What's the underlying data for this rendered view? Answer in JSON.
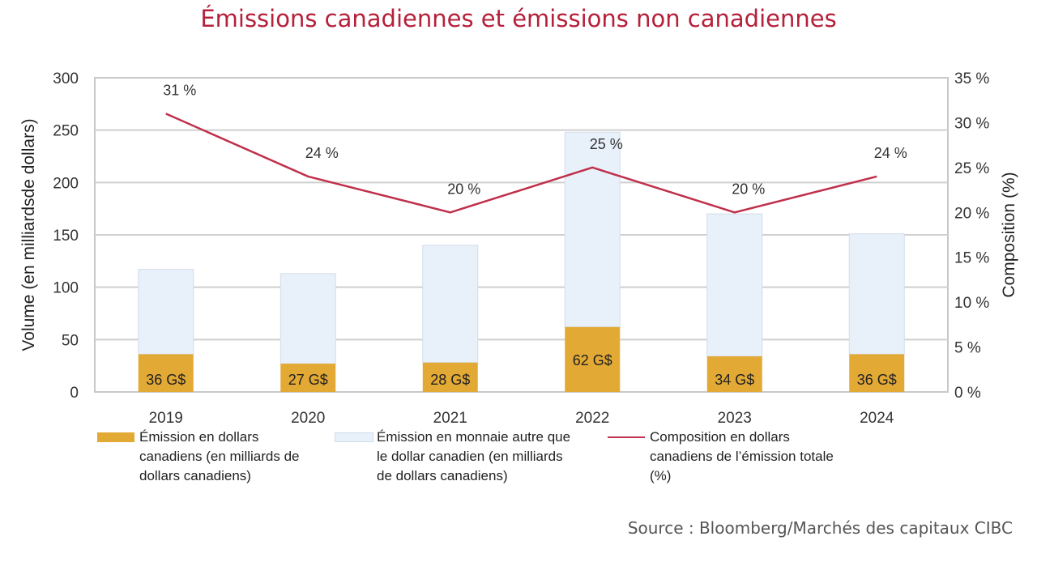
{
  "chart_data": {
    "type": "bar",
    "stacked": true,
    "title": "Émissions canadiennes et émissions non canadiennes",
    "categories": [
      "2019",
      "2020",
      "2021",
      "2022",
      "2023",
      "2024"
    ],
    "series": [
      {
        "name": "Émission en dollars canadiens (en milliards de dollars canadiens)",
        "type": "bar",
        "axis": "left",
        "color": "#e3a935",
        "values": [
          36,
          27,
          28,
          62,
          34,
          36
        ],
        "labels": [
          "36 G$",
          "27 G$",
          "28 G$",
          "62 G$",
          "34 G$",
          "36 G$"
        ]
      },
      {
        "name": "Émission en monnaie autre que le dollar canadien (en milliards de dollars canadiens)",
        "type": "bar",
        "axis": "left",
        "color": "#e8f0fa",
        "values": [
          81,
          86,
          112,
          186,
          136,
          115
        ]
      },
      {
        "name": "Composition en dollars canadiens de l’émission totale (%)",
        "type": "line",
        "axis": "right",
        "color": "#c0304a",
        "values": [
          31,
          24,
          20,
          25,
          20,
          24
        ],
        "labels": [
          "31 %",
          "24 %",
          "20 %",
          "25 %",
          "20 %",
          "24 %"
        ]
      }
    ],
    "ylabel": "Volume (en milliards de dollars)",
    "ylabel_display": "Volume (en milliardsde dollars)",
    "y2label": "Composition (%)",
    "ylim": [
      0,
      300
    ],
    "y2lim": [
      0,
      35
    ],
    "yticks": [
      "0",
      "50",
      "100",
      "150",
      "200",
      "250",
      "300"
    ],
    "y2ticks": [
      "0 %",
      "5 %",
      "10 %",
      "15 %",
      "20 %",
      "25 %",
      "30 %",
      "35 %"
    ],
    "grid": true,
    "legend_position": "bottom"
  },
  "legend": [
    {
      "label": "Émission en dollars canadiens (en milliards de dollars canadiens)",
      "color": "#e3a935"
    },
    {
      "label": "Émission en monnaie autre que le dollar canadien (en milliards de dollars canadiens)",
      "color": "#e8f0fa"
    },
    {
      "label": "Composition en dollars canadiens de l’émission totale (%)",
      "color": "#c0304a"
    }
  ],
  "source": "Source : Bloomberg/Marchés des capitaux CIBC"
}
